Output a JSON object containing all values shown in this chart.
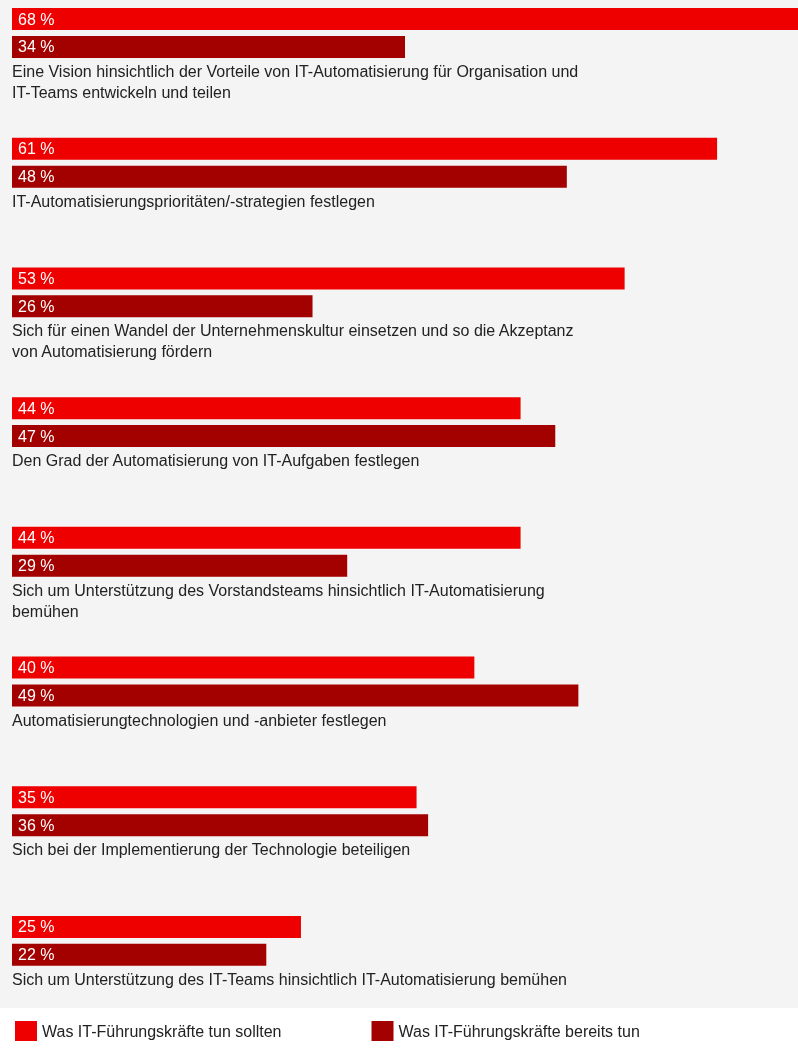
{
  "chart_data": {
    "type": "bar",
    "orientation": "horizontal",
    "legend": "bottom",
    "xlim": [
      0,
      68
    ],
    "tick_labels": "y",
    "categories": [
      "Eine Vision hinsichtlich der Vorteile von IT-Automatisierung für Organisation und IT-Teams entwickeln und teilen",
      "IT-Automatisierungsprioritäten/-strategien festlegen",
      "Sich für einen Wandel der Unternehmenskultur einsetzen und so die Akzeptanz von Automatisierung fördern",
      "Den Grad der Automatisierung von IT-Aufgaben festlegen",
      "Sich um Unterstützung des Vorstandsteams hinsichtlich IT-Automatisierung bemühen",
      "Automatisierungtechnologien und -anbieter festlegen",
      "Sich bei der Implementierung der Technologie beteiligen",
      "Sich um Unterstützung des IT-Teams hinsichtlich IT-Automatisierung bemühen"
    ],
    "series": [
      {
        "name": "Was IT-Führungskräfte tun sollten",
        "color": "#ee0000",
        "values": [
          68,
          61,
          53,
          44,
          44,
          40,
          35,
          25
        ],
        "value_labels": [
          "68 %",
          "61 %",
          "53 %",
          "44 %",
          "44 %",
          "40 %",
          "35 %",
          "25 %"
        ]
      },
      {
        "name": "Was IT-Führungskräfte bereits tun",
        "color": "#a30000",
        "values": [
          34,
          48,
          26,
          47,
          29,
          49,
          36,
          22
        ],
        "value_labels": [
          "34 %",
          "48 %",
          "26 %",
          "47 %",
          "29 %",
          "49 %",
          "36 %",
          "22 %"
        ]
      }
    ]
  }
}
